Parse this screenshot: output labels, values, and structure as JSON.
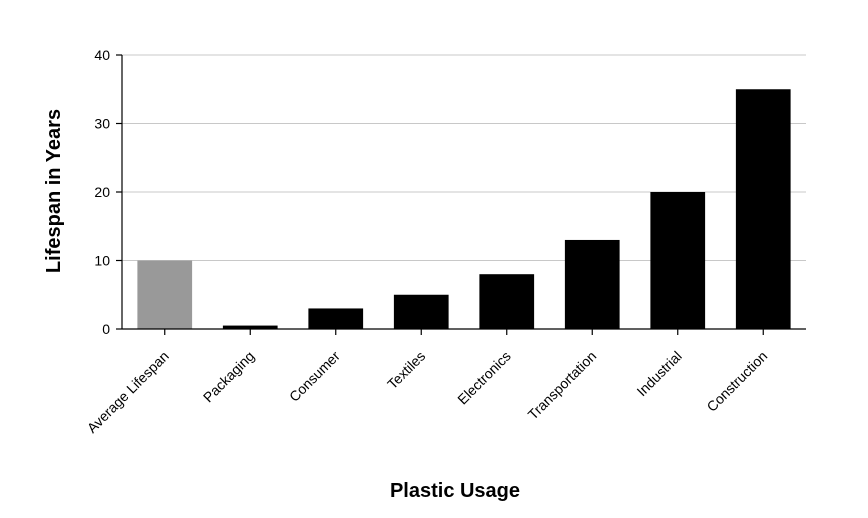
{
  "chart_data": {
    "type": "bar",
    "title": "",
    "xlabel": "Plastic Usage",
    "ylabel": "Lifespan in Years",
    "categories": [
      "Average Lifespan",
      "Packaging",
      "Consumer",
      "Textiles",
      "Electronics",
      "Transportation",
      "Industrial",
      "Construction"
    ],
    "values": [
      10,
      0.5,
      3,
      5,
      8,
      13,
      20,
      35
    ],
    "bar_colors": [
      "#999999",
      "#000000",
      "#000000",
      "#000000",
      "#000000",
      "#000000",
      "#000000",
      "#000000"
    ],
    "ylim": [
      0,
      40
    ],
    "yticks": [
      0,
      10,
      20,
      30,
      40
    ],
    "grid": "horizontal",
    "legend": "none"
  }
}
